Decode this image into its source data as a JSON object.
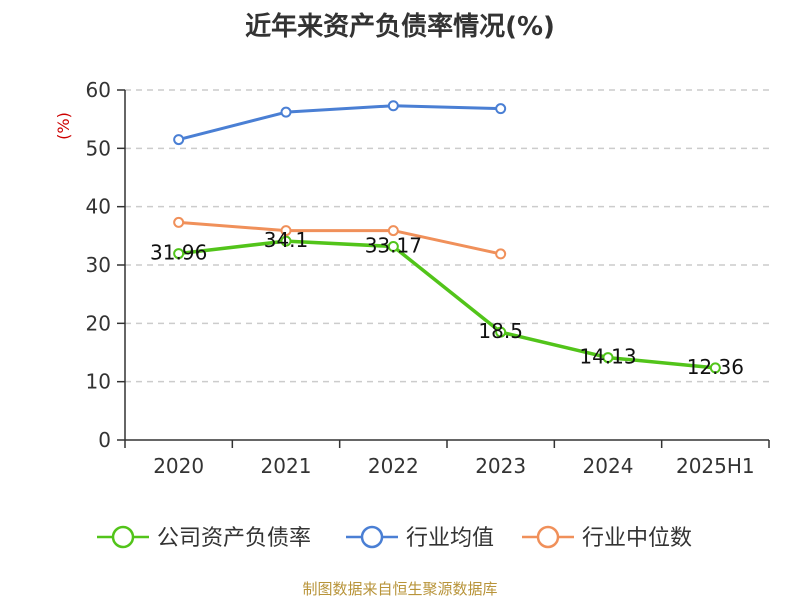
{
  "chart_data": {
    "type": "line",
    "title": "近年来资产负债率情况(%)",
    "ylabel": "(%)",
    "categories": [
      "2020",
      "2021",
      "2022",
      "2023",
      "2024",
      "2025H1"
    ],
    "ylim": [
      0,
      60
    ],
    "yticks": [
      0,
      10,
      20,
      30,
      40,
      50,
      60
    ],
    "grid": true,
    "legend_position": "bottom",
    "series": [
      {
        "name": "公司资产负债率",
        "color": "#52c41a",
        "values": [
          31.96,
          34.1,
          33.17,
          18.5,
          14.13,
          12.36
        ],
        "labels": [
          "31.96",
          "34.1",
          "33.17",
          "18.5",
          "14.13",
          "12.36"
        ]
      },
      {
        "name": "行业均值",
        "color": "#4a7fd4",
        "values": [
          51.5,
          56.2,
          57.3,
          56.8,
          null,
          null
        ]
      },
      {
        "name": "行业中位数",
        "color": "#f0905a",
        "values": [
          37.3,
          35.9,
          35.9,
          31.9,
          null,
          null
        ]
      }
    ]
  },
  "source": "制图数据来自恒生聚源数据库",
  "colors": {
    "ylabel": "#cc0000",
    "grid": "#cccccc",
    "axis": "#333333"
  }
}
